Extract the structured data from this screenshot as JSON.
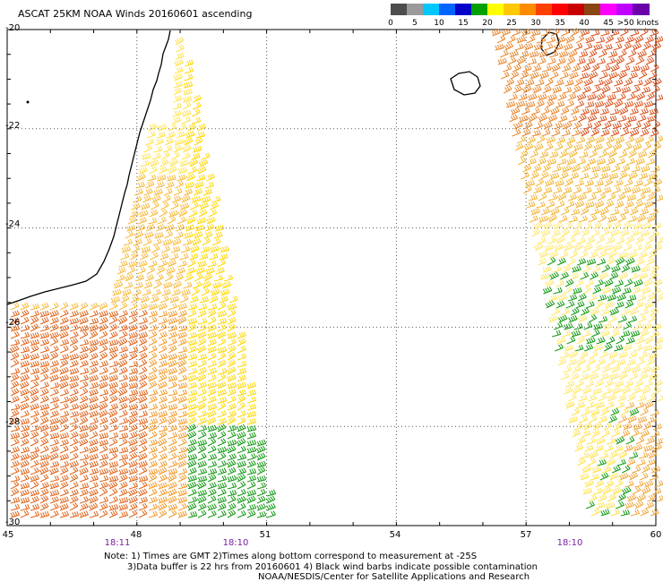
{
  "title": "ASCAT 25KM NOAA Winds 20160601 ascending",
  "scale": {
    "colors": [
      "#4d4d4d",
      "#9a9a9a",
      "#00c8ff",
      "#0064ff",
      "#0000c8",
      "#00a000",
      "#ffff00",
      "#ffc800",
      "#ff8c00",
      "#ff4000",
      "#ff0000",
      "#c80000",
      "#8b4513",
      "#ff00ff",
      "#c000ff",
      "#6a00aa"
    ],
    "labels": [
      "0",
      "5",
      "10",
      "15",
      "20",
      "25",
      "30",
      "35",
      "40",
      "45",
      ">50 knots"
    ]
  },
  "axes": {
    "y_labels": [
      "-20",
      "-22",
      "-24",
      "-26",
      "-28",
      "-30"
    ],
    "x_labels": [
      "45",
      "48",
      "51",
      "54",
      "57",
      "60"
    ]
  },
  "times": [
    "18:11",
    "18:10",
    "18:10"
  ],
  "notes": {
    "line1": "Note: 1) Times are GMT 2)Times along bottom correspond to measurement at -25S",
    "line2": "3)Data buffer is 22 hrs from 20160601 4) Black wind barbs indicate possible contamination",
    "line3": "NOAA/NESDIS/Center for Satellite Applications and Research"
  },
  "map_data": {
    "lon_range": [
      45,
      60
    ],
    "lat_range": [
      -30,
      -20
    ],
    "swaths": [
      {
        "name": "west",
        "color_note": "yellow, orange, green barbs"
      },
      {
        "name": "east",
        "color_note": "orange, yellow, green barbs"
      }
    ]
  }
}
